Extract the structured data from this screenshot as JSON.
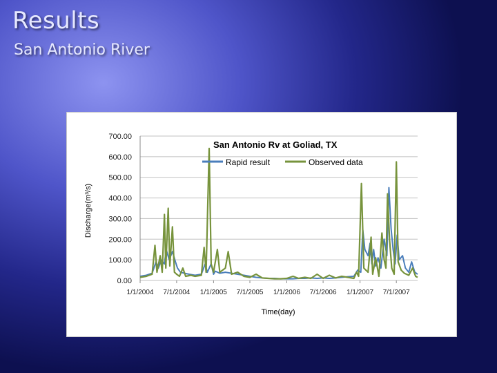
{
  "slide": {
    "title": "Results",
    "subtitle": "San Antonio River"
  },
  "colors": {
    "rapid": "#4a7ebb",
    "observed": "#77933c",
    "grid": "#c0c0c0"
  },
  "chart_data": {
    "type": "line",
    "title": "San Antonio Rv at Goliad, TX",
    "xlabel": "Time(day)",
    "ylabel": "Discharge(m³/s)",
    "ylim": [
      0,
      700
    ],
    "xlim": [
      "2004-01-01",
      "2007-10-15"
    ],
    "grid": true,
    "legend": "top",
    "y_ticks": [
      "0.00",
      "100.00",
      "200.00",
      "300.00",
      "400.00",
      "500.00",
      "600.00",
      "700.00"
    ],
    "x_ticks": [
      {
        "date": "2004-01-01",
        "label": "1/1/2004"
      },
      {
        "date": "2004-07-01",
        "label": "7/1/2004"
      },
      {
        "date": "2005-01-01",
        "label": "1/1/2005"
      },
      {
        "date": "2005-07-01",
        "label": "7/1/2005"
      },
      {
        "date": "2006-01-01",
        "label": "1/1/2006"
      },
      {
        "date": "2006-07-01",
        "label": "7/1/2006"
      },
      {
        "date": "2007-01-01",
        "label": "1/1/2007"
      },
      {
        "date": "2007-07-01",
        "label": "7/1/2007"
      }
    ],
    "series": [
      {
        "name": "Rapid result",
        "color": "#4a7ebb",
        "points": [
          [
            "2004-01-01",
            20
          ],
          [
            "2004-02-01",
            25
          ],
          [
            "2004-03-01",
            35
          ],
          [
            "2004-03-20",
            90
          ],
          [
            "2004-04-01",
            60
          ],
          [
            "2004-04-15",
            100
          ],
          [
            "2004-05-01",
            80
          ],
          [
            "2004-05-10",
            150
          ],
          [
            "2004-05-25",
            100
          ],
          [
            "2004-06-10",
            140
          ],
          [
            "2004-06-25",
            90
          ],
          [
            "2004-07-05",
            60
          ],
          [
            "2004-07-20",
            40
          ],
          [
            "2004-08-10",
            35
          ],
          [
            "2004-09-01",
            30
          ],
          [
            "2004-10-01",
            25
          ],
          [
            "2004-11-01",
            30
          ],
          [
            "2004-11-20",
            80
          ],
          [
            "2004-12-01",
            40
          ],
          [
            "2004-12-20",
            80
          ],
          [
            "2005-01-01",
            30
          ],
          [
            "2005-01-10",
            45
          ],
          [
            "2005-02-01",
            35
          ],
          [
            "2005-03-01",
            40
          ],
          [
            "2005-04-01",
            35
          ],
          [
            "2005-05-01",
            30
          ],
          [
            "2005-06-01",
            25
          ],
          [
            "2005-07-01",
            20
          ],
          [
            "2005-08-01",
            15
          ],
          [
            "2005-09-01",
            12
          ],
          [
            "2005-10-01",
            10
          ],
          [
            "2005-11-01",
            10
          ],
          [
            "2005-12-01",
            8
          ],
          [
            "2006-01-01",
            8
          ],
          [
            "2006-02-01",
            8
          ],
          [
            "2006-03-01",
            10
          ],
          [
            "2006-04-01",
            10
          ],
          [
            "2006-05-01",
            12
          ],
          [
            "2006-06-01",
            10
          ],
          [
            "2006-07-01",
            12
          ],
          [
            "2006-08-01",
            10
          ],
          [
            "2006-09-01",
            12
          ],
          [
            "2006-10-01",
            15
          ],
          [
            "2006-11-01",
            18
          ],
          [
            "2006-12-01",
            20
          ],
          [
            "2006-12-20",
            50
          ],
          [
            "2007-01-05",
            40
          ],
          [
            "2007-01-15",
            245
          ],
          [
            "2007-01-25",
            150
          ],
          [
            "2007-02-10",
            120
          ],
          [
            "2007-02-20",
            180
          ],
          [
            "2007-03-01",
            80
          ],
          [
            "2007-03-10",
            150
          ],
          [
            "2007-03-20",
            70
          ],
          [
            "2007-04-01",
            110
          ],
          [
            "2007-04-15",
            60
          ],
          [
            "2007-05-01",
            200
          ],
          [
            "2007-05-15",
            120
          ],
          [
            "2007-05-25",
            450
          ],
          [
            "2007-06-05",
            250
          ],
          [
            "2007-06-15",
            150
          ],
          [
            "2007-06-25",
            80
          ],
          [
            "2007-07-05",
            220
          ],
          [
            "2007-07-15",
            100
          ],
          [
            "2007-08-01",
            120
          ],
          [
            "2007-08-15",
            60
          ],
          [
            "2007-09-01",
            40
          ],
          [
            "2007-09-15",
            90
          ],
          [
            "2007-10-01",
            40
          ],
          [
            "2007-10-15",
            30
          ]
        ]
      },
      {
        "name": "Observed data",
        "color": "#77933c",
        "points": [
          [
            "2004-01-01",
            15
          ],
          [
            "2004-02-01",
            20
          ],
          [
            "2004-03-01",
            30
          ],
          [
            "2004-03-15",
            170
          ],
          [
            "2004-03-25",
            40
          ],
          [
            "2004-04-10",
            120
          ],
          [
            "2004-04-20",
            40
          ],
          [
            "2004-05-01",
            320
          ],
          [
            "2004-05-08",
            60
          ],
          [
            "2004-05-20",
            350
          ],
          [
            "2004-05-28",
            70
          ],
          [
            "2004-06-10",
            260
          ],
          [
            "2004-06-20",
            40
          ],
          [
            "2004-07-01",
            30
          ],
          [
            "2004-07-15",
            20
          ],
          [
            "2004-08-01",
            60
          ],
          [
            "2004-08-15",
            20
          ],
          [
            "2004-09-10",
            25
          ],
          [
            "2004-10-01",
            20
          ],
          [
            "2004-11-01",
            25
          ],
          [
            "2004-11-15",
            160
          ],
          [
            "2004-11-25",
            40
          ],
          [
            "2004-12-10",
            640
          ],
          [
            "2004-12-20",
            80
          ],
          [
            "2005-01-01",
            40
          ],
          [
            "2005-01-20",
            150
          ],
          [
            "2005-02-01",
            40
          ],
          [
            "2005-03-01",
            60
          ],
          [
            "2005-03-15",
            140
          ],
          [
            "2005-04-01",
            30
          ],
          [
            "2005-05-01",
            40
          ],
          [
            "2005-06-01",
            20
          ],
          [
            "2005-07-01",
            15
          ],
          [
            "2005-08-01",
            30
          ],
          [
            "2005-09-01",
            12
          ],
          [
            "2005-10-01",
            10
          ],
          [
            "2005-11-01",
            8
          ],
          [
            "2005-12-01",
            8
          ],
          [
            "2006-01-01",
            10
          ],
          [
            "2006-02-01",
            20
          ],
          [
            "2006-03-01",
            10
          ],
          [
            "2006-04-01",
            15
          ],
          [
            "2006-05-01",
            10
          ],
          [
            "2006-06-01",
            30
          ],
          [
            "2006-07-01",
            10
          ],
          [
            "2006-08-01",
            25
          ],
          [
            "2006-09-01",
            12
          ],
          [
            "2006-10-01",
            20
          ],
          [
            "2006-11-01",
            15
          ],
          [
            "2006-12-01",
            10
          ],
          [
            "2006-12-15",
            40
          ],
          [
            "2006-12-25",
            20
          ],
          [
            "2007-01-08",
            470
          ],
          [
            "2007-01-20",
            60
          ],
          [
            "2007-02-10",
            40
          ],
          [
            "2007-02-25",
            210
          ],
          [
            "2007-03-05",
            30
          ],
          [
            "2007-03-20",
            110
          ],
          [
            "2007-04-05",
            20
          ],
          [
            "2007-04-20",
            230
          ],
          [
            "2007-05-01",
            100
          ],
          [
            "2007-05-10",
            60
          ],
          [
            "2007-05-18",
            420
          ],
          [
            "2007-05-28",
            200
          ],
          [
            "2007-06-08",
            60
          ],
          [
            "2007-06-20",
            30
          ],
          [
            "2007-07-01",
            575
          ],
          [
            "2007-07-10",
            90
          ],
          [
            "2007-07-25",
            50
          ],
          [
            "2007-08-10",
            35
          ],
          [
            "2007-09-01",
            25
          ],
          [
            "2007-09-20",
            60
          ],
          [
            "2007-10-05",
            20
          ],
          [
            "2007-10-15",
            15
          ]
        ]
      }
    ]
  }
}
